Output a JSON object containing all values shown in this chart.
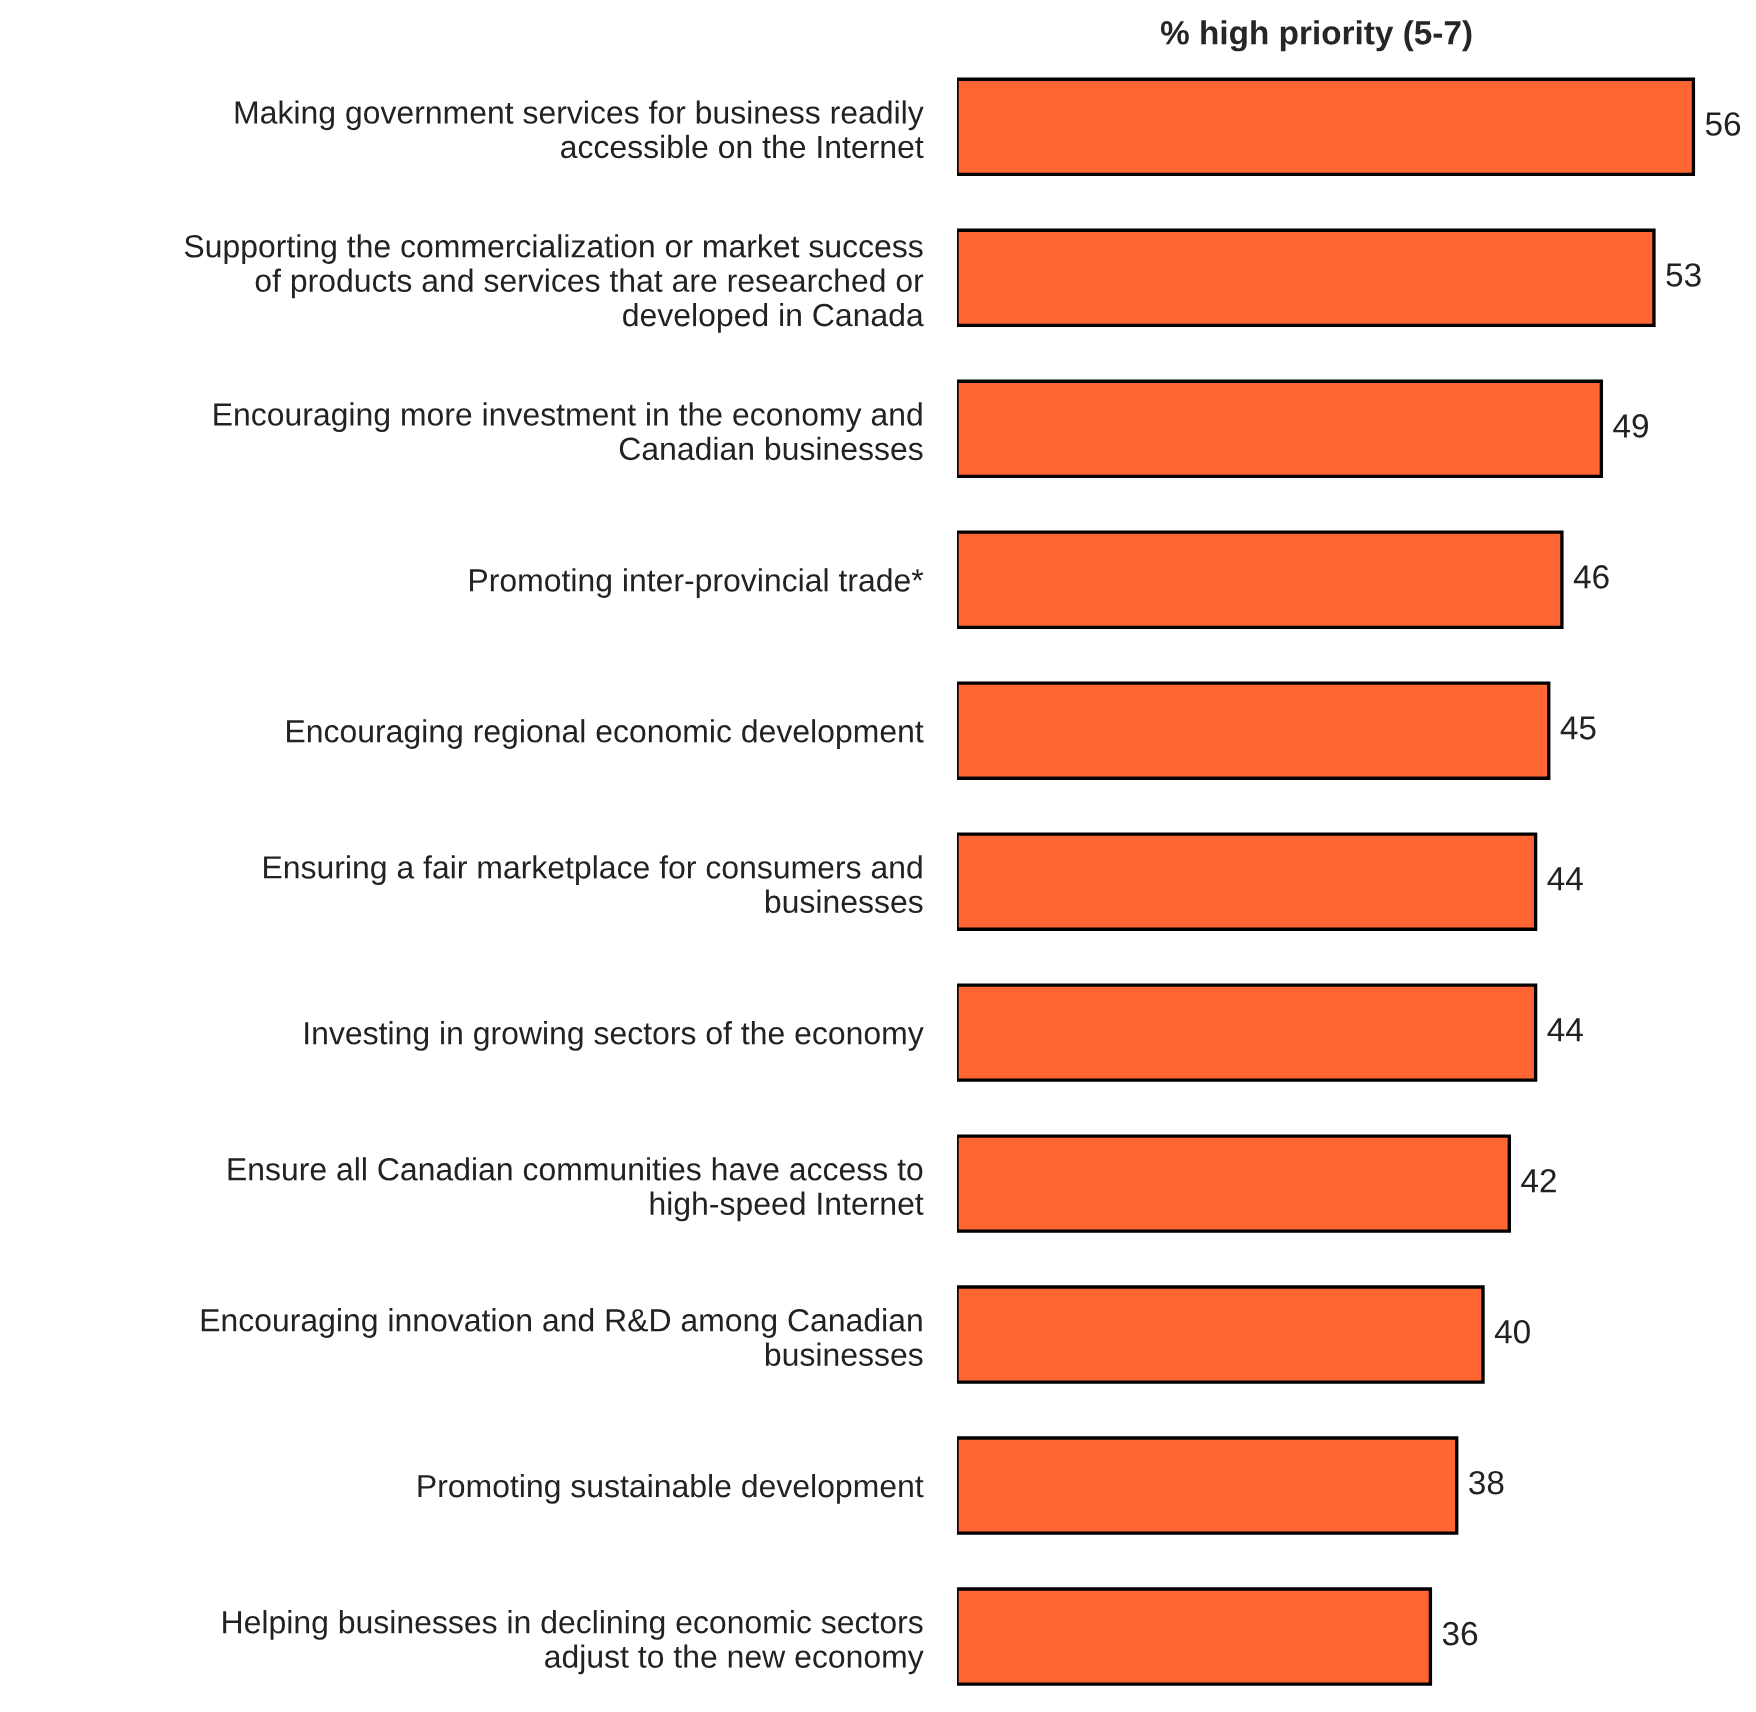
{
  "chart_data": {
    "type": "bar",
    "orientation": "horizontal",
    "title": "% high priority (5-7)",
    "categories": [
      "Making government services for business readily\naccessible on the Internet",
      "Supporting the commercialization or market success\nof products and services that are researched or\ndeveloped in Canada",
      "Encouraging more investment in the economy and\nCanadian businesses",
      "Promoting inter-provincial trade*",
      "Encouraging regional economic development",
      "Ensuring a fair marketplace for consumers and\nbusinesses",
      "Investing in growing sectors of the economy",
      "Ensure all Canadian communities have access to\nhigh-speed Internet",
      "Encouraging innovation and R&D among Canadian\nbusinesses",
      "Promoting sustainable development",
      "Helping businesses in declining economic sectors\nadjust to the new economy"
    ],
    "values": [
      56,
      53,
      49,
      46,
      45,
      44,
      44,
      42,
      40,
      38,
      36
    ],
    "color": "#ff6633",
    "data_labels": true,
    "grid": false
  }
}
